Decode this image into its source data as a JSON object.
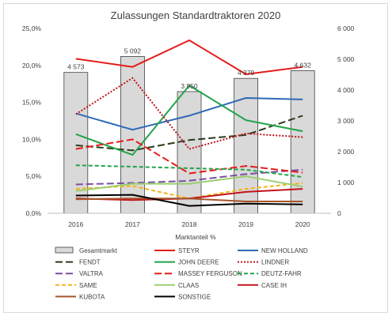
{
  "chart_data": {
    "type": "bar+line",
    "title": "Zulassungen Standardtraktoren 2020",
    "xlabel": "Marktanteil %",
    "categories": [
      "2016",
      "2017",
      "2018",
      "2019",
      "2020"
    ],
    "y_left": {
      "min": 0,
      "max": 25,
      "ticks": [
        "0,0%",
        "5,0%",
        "10,0%",
        "15,0%",
        "20,0%",
        "25,0%"
      ]
    },
    "y_right": {
      "min": 0,
      "max": 6000,
      "ticks": [
        "0",
        "1 000",
        "2 000",
        "3 000",
        "4 000",
        "5 000",
        "6 000"
      ]
    },
    "grid": false,
    "legend_position": "bottom",
    "bars": {
      "name": "Gesamtmarkt",
      "axis": "right",
      "color": "#d9d9d9",
      "values": [
        4573,
        5092,
        3950,
        4379,
        4632
      ],
      "labels": [
        "4 573",
        "5 092",
        "3 950",
        "4 379",
        "4 632"
      ]
    },
    "series": [
      {
        "name": "STEYR",
        "color": "#e51b1b",
        "dash": "solid",
        "values": [
          20.9,
          19.8,
          23.4,
          18.8,
          19.8
        ]
      },
      {
        "name": "NEW HOLLAND",
        "color": "#2e69b5",
        "dash": "solid",
        "values": [
          13.5,
          11.3,
          13.2,
          15.6,
          15.4
        ]
      },
      {
        "name": "FENDT",
        "color": "#2b3a1c",
        "dash": "longdash",
        "values": [
          9.2,
          8.5,
          9.9,
          10.6,
          13.2
        ]
      },
      {
        "name": "JOHN DEERE",
        "color": "#22a44a",
        "dash": "solid",
        "values": [
          10.7,
          7.9,
          17.3,
          12.6,
          11.1
        ]
      },
      {
        "name": "LINDNER",
        "color": "#c0141c",
        "dash": "dot",
        "values": [
          13.4,
          18.3,
          8.7,
          10.8,
          10.3
        ]
      },
      {
        "name": "VALTRA",
        "color": "#7a4fa3",
        "dash": "longdash",
        "values": [
          3.9,
          4.1,
          4.4,
          5.3,
          5.9
        ]
      },
      {
        "name": "MASSEY FERGUSON",
        "color": "#e51b1b",
        "dash": "longdash",
        "values": [
          8.7,
          10.0,
          5.4,
          6.4,
          5.5
        ]
      },
      {
        "name": "DEUTZ-FAHR",
        "color": "#22a44a",
        "dash": "dash",
        "values": [
          6.5,
          6.3,
          6.1,
          5.9,
          4.9
        ]
      },
      {
        "name": "SAME",
        "color": "#f5b31a",
        "dash": "dash",
        "values": [
          3.3,
          3.7,
          2.0,
          3.3,
          4.1
        ]
      },
      {
        "name": "CLAAS",
        "color": "#9bcf6e",
        "dash": "solid",
        "values": [
          3.0,
          4.0,
          4.0,
          5.0,
          3.6
        ]
      },
      {
        "name": "CASE IH",
        "color": "#c0141c",
        "dash": "solid",
        "values": [
          2.0,
          1.8,
          2.0,
          2.9,
          3.3
        ]
      },
      {
        "name": "KUBOTA",
        "color": "#a5552b",
        "dash": "solid",
        "values": [
          1.9,
          2.0,
          2.0,
          1.6,
          1.6
        ]
      },
      {
        "name": "SONSTIGE",
        "color": "#000000",
        "dash": "solid",
        "values": [
          2.4,
          2.5,
          1.0,
          1.3,
          1.2
        ]
      }
    ]
  }
}
